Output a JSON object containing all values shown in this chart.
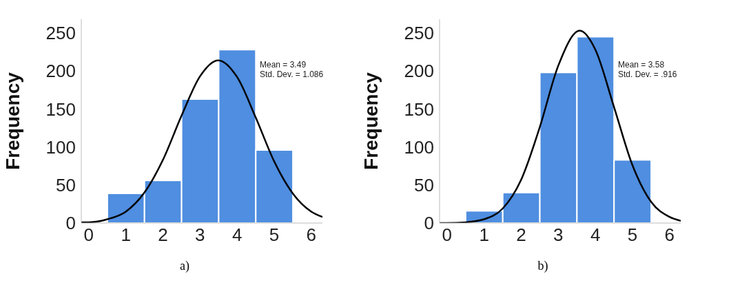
{
  "chart_data": [
    {
      "type": "histogram",
      "ylabel": "Frequency",
      "annotations": [
        "Mean = 3.49",
        "Std. Dev. = 1.086",
        "a)"
      ],
      "bins": [
        0.5,
        1.5,
        2.5,
        3.5,
        4.5,
        5.5
      ],
      "values": [
        39,
        56,
        163,
        228,
        96
      ],
      "color": "#4f8ee0",
      "xlim": [
        -0.2,
        6.3
      ],
      "xticks": [
        0,
        1,
        2,
        3,
        4,
        5,
        6
      ],
      "ylim": [
        0,
        268
      ],
      "yticks": [
        0,
        50,
        100,
        150,
        200,
        250
      ],
      "grid": false,
      "series": [
        {
          "type": "line",
          "color": "#000000",
          "x": [
            -0.2,
            0,
            0.5,
            1,
            1.5,
            2,
            2.5,
            3,
            3.49,
            4,
            4.5,
            5,
            5.5,
            6,
            6.3
          ],
          "values": [
            1,
            1,
            5,
            15,
            40,
            83,
            141,
            193,
            214,
            192,
            139,
            81,
            39,
            15,
            8
          ]
        }
      ]
    },
    {
      "type": "histogram",
      "ylabel": "Frequency",
      "annotations": [
        "Mean = 3.58",
        "Std. Dev. = .916",
        "b)"
      ],
      "bins": [
        0.5,
        1.5,
        2.5,
        3.5,
        4.5,
        5.5
      ],
      "values": [
        16,
        40,
        198,
        245,
        83
      ],
      "color": "#4f8ee0",
      "xlim": [
        -0.2,
        6.3
      ],
      "xticks": [
        0,
        1,
        2,
        3,
        4,
        5,
        6
      ],
      "ylim": [
        0,
        268
      ],
      "yticks": [
        0,
        50,
        100,
        150,
        200,
        250
      ],
      "grid": false,
      "series": [
        {
          "type": "line",
          "color": "#000000",
          "x": [
            -0.2,
            0,
            0.5,
            1,
            1.5,
            2,
            2.5,
            3,
            3.58,
            4,
            4.5,
            5,
            5.5,
            6,
            6.3
          ],
          "values": [
            0,
            0,
            1,
            5,
            19,
            57,
            126,
            207,
            253,
            228,
            153,
            76,
            28,
            8,
            3
          ]
        }
      ]
    }
  ]
}
